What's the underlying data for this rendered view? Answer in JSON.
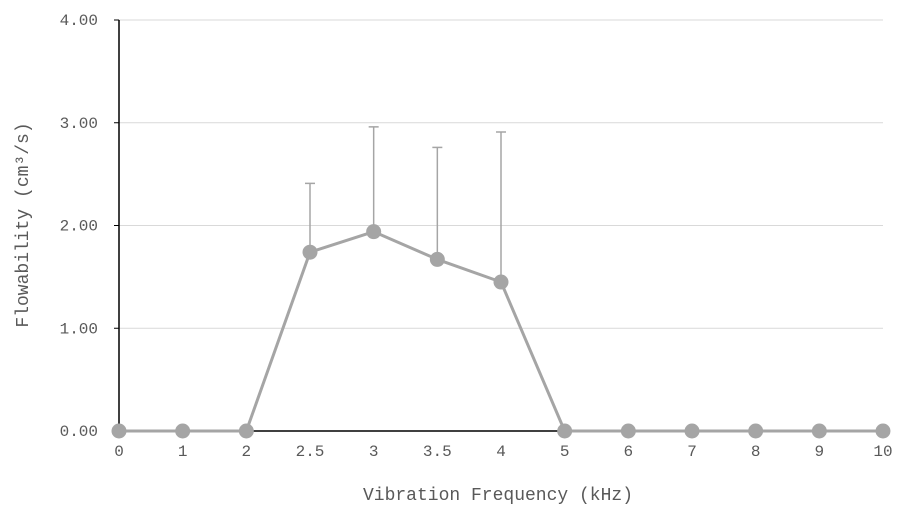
{
  "chart_data": {
    "type": "line",
    "title": "",
    "xlabel": "Vibration Frequency (kHz)",
    "ylabel": "Flowability (cm³/s)",
    "categories": [
      "0",
      "1",
      "2",
      "2.5",
      "3",
      "3.5",
      "4",
      "5",
      "6",
      "7",
      "8",
      "9",
      "10"
    ],
    "y_ticks": [
      "0.00",
      "1.00",
      "2.00",
      "3.00",
      "4.00"
    ],
    "ylim": [
      0,
      4
    ],
    "grid": true,
    "legend": "none",
    "series": [
      {
        "values": [
          0,
          0,
          0,
          1.74,
          1.94,
          1.67,
          1.45,
          0,
          0,
          0,
          0,
          0,
          0
        ],
        "error_plus": [
          0,
          0,
          0,
          0.67,
          1.02,
          1.09,
          1.46,
          0,
          0,
          0,
          0,
          0,
          0
        ],
        "color": "#a5a5a5"
      }
    ],
    "colors": {
      "grid": "#d9d9d9",
      "axis": "#000000",
      "error_bar": "#a5a5a5"
    }
  }
}
